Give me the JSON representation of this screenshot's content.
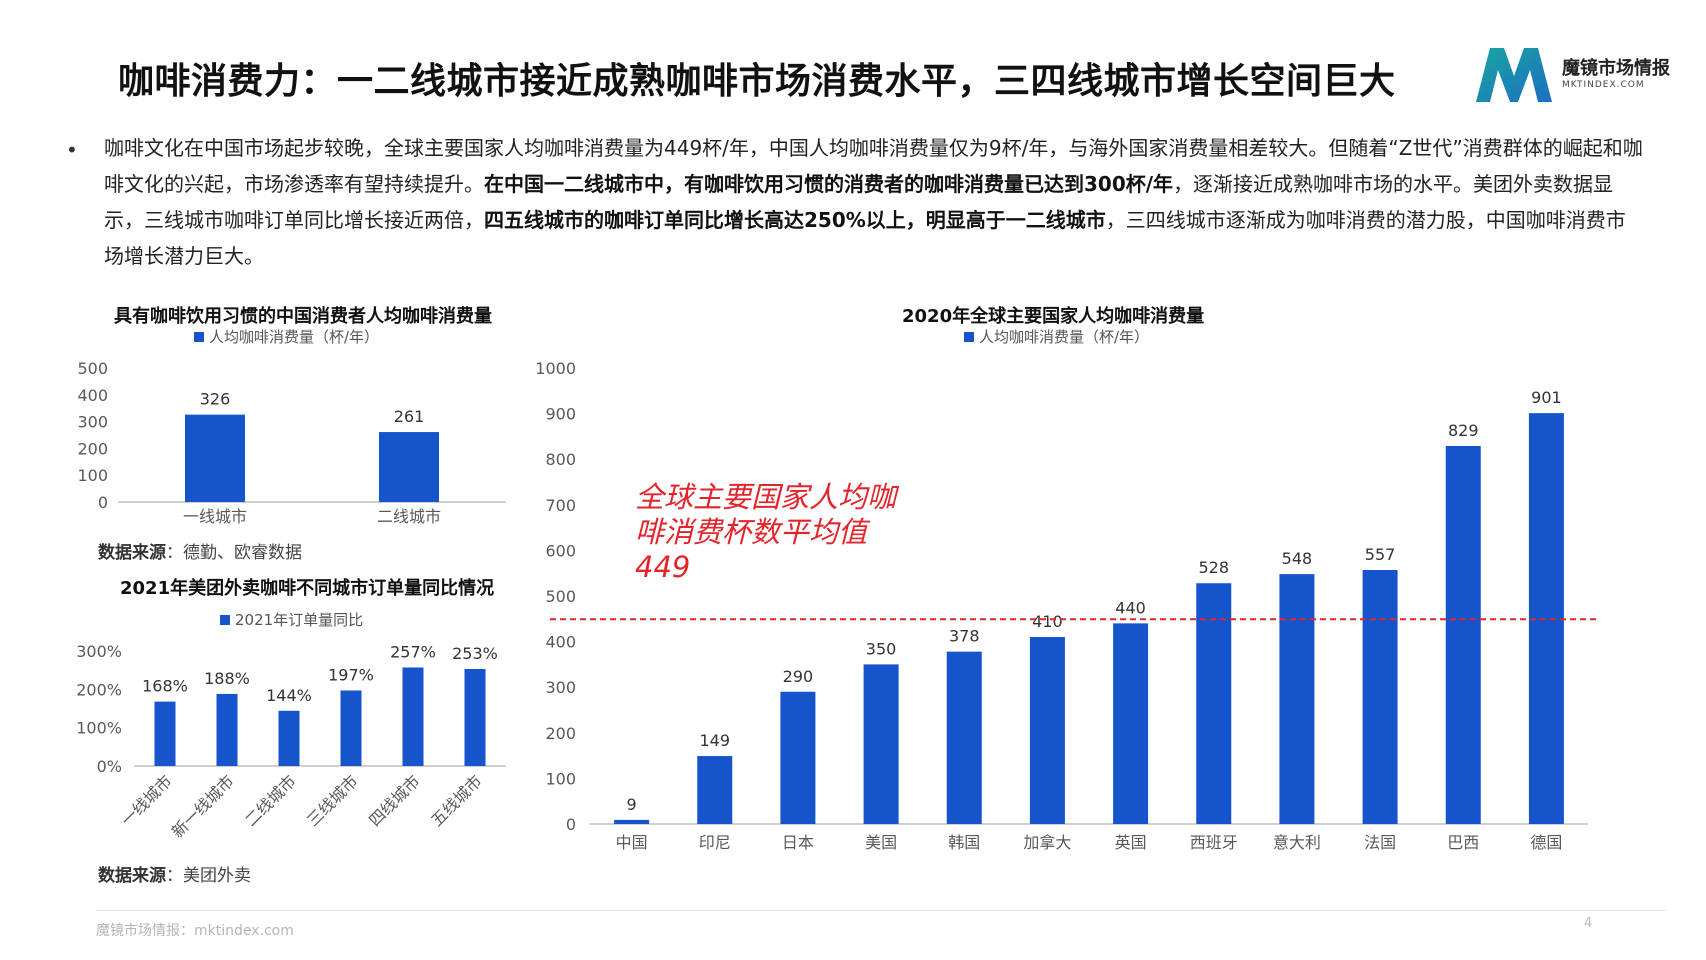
{
  "header": {
    "title": "咖啡消费力：一二线城市接近成熟咖啡市场消费水平，三四线城市增长空间巨大",
    "brand_name": "魔镜市场情报",
    "brand_url": "MKTINDEX.COM",
    "logo_icon": "mktindex-m-logo-icon"
  },
  "body": {
    "bullet": "•",
    "p1": "咖啡文化在中国市场起步较晚，全球主要国家人均咖啡消费量为449杯/年，中国人均咖啡消费量仅为9杯/年，与海外国家消费量相差较大。但随着“Z世代”消费群体的崛起和咖啡文化的兴起，市场渗透率有望持续提升。",
    "p2": "在中国一二线城市中，有咖啡饮用习惯的消费者的咖啡消费量已达到300杯/年",
    "p3": "，逐渐接近成熟咖啡市场的水平。美团外卖数据显示，三线城市咖啡订单同比增长接近两倍，",
    "p4": "四五线城市的咖啡订单同比增长高达250%以上，明显高于一二线城市",
    "p5": "，三四线城市逐渐成为咖啡消费的潜力股，中国咖啡消费市场增长潜力巨大。"
  },
  "sources": {
    "label": "数据来源",
    "sep": "：",
    "c1": "德勤、欧睿数据",
    "c2": "美团外卖"
  },
  "footer": {
    "text": "魔镜市场情报：mktindex.com",
    "page": "4"
  },
  "colors": {
    "bar": "#1654cc",
    "avg_line": "#e3242b",
    "axis": "#bfbfbf"
  },
  "chart_data": [
    {
      "id": "china-city",
      "type": "bar",
      "title": "具有咖啡饮用习惯的中国消费者人均咖啡消费量",
      "legend": "人均咖啡消费量（杯/年）",
      "categories": [
        "一线城市",
        "二线城市"
      ],
      "values": [
        326,
        261
      ],
      "ylim": [
        0,
        500
      ],
      "yticks": [
        0,
        100,
        200,
        300,
        400,
        500
      ],
      "ytick_labels": [
        "0",
        "100",
        "200",
        "300",
        "400",
        "500"
      ],
      "data_labels": [
        "326",
        "261"
      ],
      "grid": false,
      "legend_position": "top"
    },
    {
      "id": "meituan-orders",
      "type": "bar",
      "title": "2021年美团外卖咖啡不同城市订单量同比情况",
      "legend": "2021年订单量同比",
      "categories": [
        "一线城市",
        "新一线城市",
        "二线城市",
        "三线城市",
        "四线城市",
        "五线城市"
      ],
      "values": [
        168,
        188,
        144,
        197,
        257,
        253
      ],
      "ylim": [
        0,
        300
      ],
      "yticks": [
        0,
        100,
        200,
        300
      ],
      "ytick_labels": [
        "0%",
        "100%",
        "200%",
        "300%"
      ],
      "data_labels": [
        "168%",
        "188%",
        "144%",
        "197%",
        "257%",
        "253%"
      ],
      "grid": false,
      "legend_position": "top"
    },
    {
      "id": "global",
      "type": "bar",
      "title": "2020年全球主要国家人均咖啡消费量",
      "legend": "人均咖啡消费量（杯/年）",
      "categories": [
        "中国",
        "印尼",
        "日本",
        "美国",
        "韩国",
        "加拿大",
        "英国",
        "西班牙",
        "意大利",
        "法国",
        "巴西",
        "德国"
      ],
      "values": [
        9,
        149,
        290,
        350,
        378,
        410,
        440,
        528,
        548,
        557,
        829,
        901
      ],
      "ylim": [
        0,
        1000
      ],
      "yticks": [
        0,
        100,
        200,
        300,
        400,
        500,
        600,
        700,
        800,
        900,
        1000
      ],
      "ytick_labels": [
        "0",
        "100",
        "200",
        "300",
        "400",
        "500",
        "600",
        "700",
        "800",
        "900",
        "1000"
      ],
      "data_labels": [
        "9",
        "149",
        "290",
        "350",
        "378",
        "410",
        "440",
        "528",
        "548",
        "557",
        "829",
        "901"
      ],
      "reference_line": {
        "value": 449,
        "label": "全球主要国家人均咖啡消费杯数平均值449",
        "style": "dashed"
      },
      "grid": false,
      "legend_position": "top"
    }
  ]
}
